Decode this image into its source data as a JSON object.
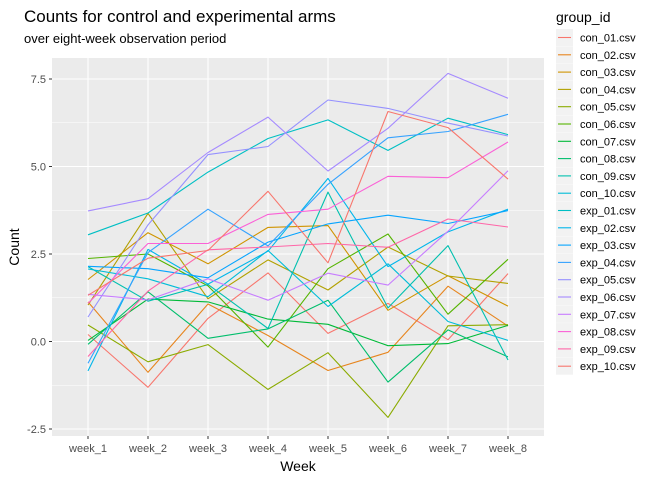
{
  "chart_data": {
    "type": "line",
    "title": "Counts for control and experimental arms",
    "subtitle": "over eight-week observation period",
    "xlabel": "Week",
    "ylabel": "Count",
    "x": [
      "week_1",
      "week_2",
      "week_3",
      "week_4",
      "week_5",
      "week_6",
      "week_7",
      "week_8"
    ],
    "ylim": [
      -2.7,
      8.1
    ],
    "yticks": [
      -2.5,
      0.0,
      2.5,
      5.0,
      7.5
    ],
    "ytick_labels": [
      "-2.5",
      "0.0",
      "2.5",
      "5.0",
      "7.5"
    ],
    "grid": true,
    "legend": {
      "title": "group_id",
      "position": "right"
    },
    "series": [
      {
        "name": "con_01.csv",
        "color": "#F8766D",
        "values": [
          0.2,
          -1.31,
          0.66,
          1.96,
          0.23,
          1.09,
          0.05,
          1.94
        ]
      },
      {
        "name": "con_02.csv",
        "color": "#E7851E",
        "values": [
          1.13,
          -0.88,
          1.07,
          0.17,
          -0.83,
          -0.31,
          1.58,
          0.44
        ]
      },
      {
        "name": "con_03.csv",
        "color": "#D09400",
        "values": [
          1.77,
          3.11,
          2.22,
          3.26,
          3.31,
          0.89,
          1.88,
          1.01
        ]
      },
      {
        "name": "con_04.csv",
        "color": "#B2A100",
        "values": [
          1.04,
          3.66,
          1.22,
          2.33,
          1.47,
          2.7,
          1.87,
          1.66
        ]
      },
      {
        "name": "con_05.csv",
        "color": "#8BAB00",
        "values": [
          0.47,
          -0.58,
          -0.09,
          -1.37,
          -0.32,
          -2.17,
          0.45,
          0.48
        ]
      },
      {
        "name": "con_06.csv",
        "color": "#55B400",
        "values": [
          2.37,
          2.5,
          1.59,
          -0.16,
          2.08,
          3.07,
          0.78,
          2.35
        ]
      },
      {
        "name": "con_07.csv",
        "color": "#00BA38",
        "values": [
          0.03,
          1.21,
          1.13,
          0.64,
          0.49,
          -0.12,
          -0.06,
          0.46
        ]
      },
      {
        "name": "con_08.csv",
        "color": "#00BE6C",
        "values": [
          -0.08,
          1.42,
          0.09,
          0.36,
          1.18,
          -1.16,
          0.33,
          -0.44
        ]
      },
      {
        "name": "con_09.csv",
        "color": "#00C0AF",
        "values": [
          2.14,
          1.15,
          1.63,
          0.37,
          4.27,
          0.96,
          2.74,
          -0.53
        ]
      },
      {
        "name": "con_10.csv",
        "color": "#00BCD8",
        "values": [
          2.07,
          1.79,
          1.28,
          2.6,
          1.0,
          2.22,
          0.57,
          0.03
        ]
      },
      {
        "name": "exp_01.csv",
        "color": "#00BFC4",
        "values": [
          3.05,
          3.67,
          4.84,
          5.8,
          6.33,
          5.46,
          6.38,
          5.91
        ]
      },
      {
        "name": "exp_02.csv",
        "color": "#00B6EB",
        "values": [
          -0.84,
          2.63,
          1.64,
          2.58,
          4.66,
          2.14,
          3.13,
          3.78
        ]
      },
      {
        "name": "exp_03.csv",
        "color": "#06A4FF",
        "values": [
          2.15,
          2.08,
          1.82,
          2.84,
          3.36,
          3.61,
          3.37,
          3.74
        ]
      },
      {
        "name": "exp_04.csv",
        "color": "#35A2FF",
        "values": [
          -0.62,
          2.54,
          3.78,
          2.73,
          4.49,
          5.82,
          6.0,
          6.49
        ]
      },
      {
        "name": "exp_05.csv",
        "color": "#9590FF",
        "values": [
          0.7,
          3.33,
          5.34,
          5.57,
          6.9,
          6.66,
          6.24,
          5.87
        ]
      },
      {
        "name": "exp_06.csv",
        "color": "#A58AFF",
        "values": [
          3.73,
          4.08,
          5.4,
          6.41,
          4.87,
          6.09,
          7.66,
          6.95
        ]
      },
      {
        "name": "exp_07.csv",
        "color": "#C77CFF",
        "values": [
          1.35,
          1.19,
          1.79,
          1.18,
          1.95,
          1.61,
          3.15,
          4.88
        ]
      },
      {
        "name": "exp_08.csv",
        "color": "#FB61D7",
        "values": [
          1.09,
          2.8,
          2.8,
          3.63,
          3.78,
          4.72,
          4.68,
          5.7
        ]
      },
      {
        "name": "exp_09.csv",
        "color": "#FF66A8",
        "values": [
          -0.43,
          1.44,
          2.62,
          2.7,
          2.8,
          2.69,
          3.5,
          3.27
        ]
      },
      {
        "name": "exp_10.csv",
        "color": "#F8766D",
        "values": [
          1.32,
          2.38,
          2.6,
          4.29,
          2.25,
          6.57,
          6.11,
          4.64
        ]
      }
    ]
  }
}
